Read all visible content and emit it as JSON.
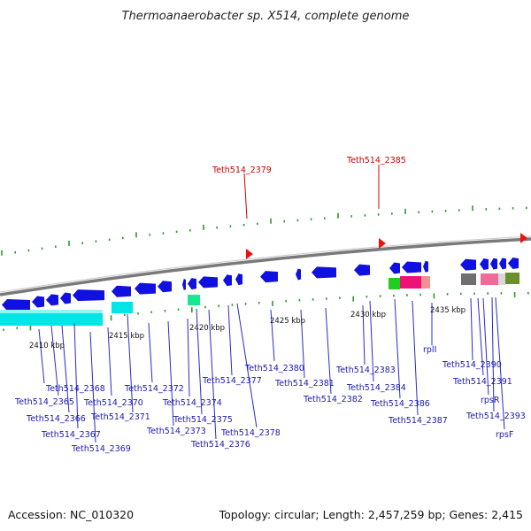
{
  "title": "Thermoanaerobacter sp. X514, complete genome",
  "footer": {
    "accession": "Accession: NC_010320",
    "info": "Topology: circular; Length: 2,457,259 bp; Genes: 2,415"
  },
  "colors": {
    "forward_gene": "#1010e0",
    "rrna": "#00e5e5",
    "red_marker": "#ee1111",
    "backbone": "#888888",
    "tick": "#2a9a2a"
  },
  "kbp_labels": [
    "2410 kbp",
    "2415 kbp",
    "2420 kbp",
    "2425 kbp",
    "2430 kbp",
    "2435 kbp"
  ],
  "top_labels": [
    "Teth514_2379",
    "Teth514_2385"
  ],
  "gene_labels": [
    "Teth514_2365",
    "Teth514_2366",
    "Teth514_2367",
    "Teth514_2368",
    "Teth514_2369",
    "Teth514_2370",
    "Teth514_2371",
    "Teth514_2372",
    "Teth514_2373",
    "Teth514_2374",
    "Teth514_2375",
    "Teth514_2376",
    "Teth514_2377",
    "Teth514_2378",
    "Teth514_2380",
    "Teth514_2381",
    "Teth514_2382",
    "Teth514_2383",
    "Teth514_2384",
    "Teth514_2386",
    "Teth514_2387",
    "rplI",
    "Teth514_2390",
    "Teth514_2391",
    "rpsR",
    "Teth514_2393",
    "rpsF"
  ]
}
